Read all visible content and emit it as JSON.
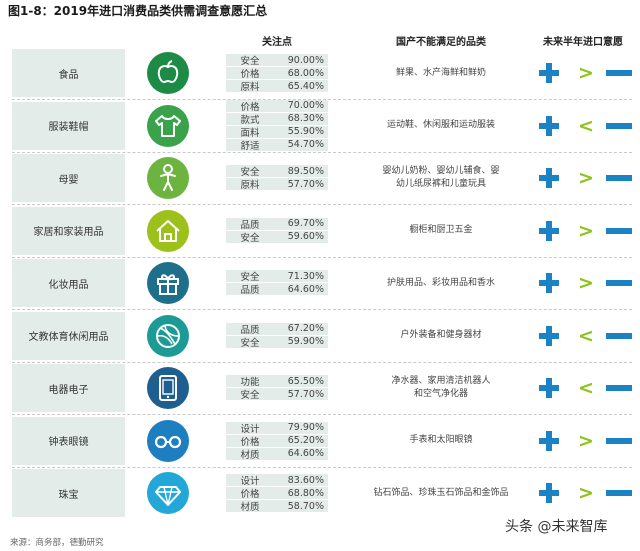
{
  "title": "图1-8：2019年进口消费品类供需调查意愿汇总",
  "headers": {
    "focus": "关注点",
    "unmet": "国产不能满足的品类",
    "intent": "未来半年进口意愿"
  },
  "colors": {
    "accent_blue": "#1b82c4",
    "accent_green": "#8dc21f",
    "category_bg": "#e4ece9"
  },
  "rows": [
    {
      "category": "食品",
      "icon": "apple-icon",
      "icon_color": "#1d8a45",
      "attrs": [
        {
          "k": "安全",
          "v": "90.00%"
        },
        {
          "k": "价格",
          "v": "68.00%"
        },
        {
          "k": "原料",
          "v": "65.40%"
        }
      ],
      "unmet": [
        "鲜果、水产海鲜和鲜奶"
      ],
      "compare": ">"
    },
    {
      "category": "服装鞋帽",
      "icon": "tshirt-icon",
      "icon_color": "#3aa24a",
      "attrs": [
        {
          "k": "价格",
          "v": "70.00%"
        },
        {
          "k": "款式",
          "v": "68.30%"
        },
        {
          "k": "面料",
          "v": "55.90%"
        },
        {
          "k": "舒适",
          "v": "54.70%"
        }
      ],
      "unmet": [
        "运动鞋、休闲服和运动服装"
      ],
      "compare": "<"
    },
    {
      "category": "母婴",
      "icon": "baby-icon",
      "icon_color": "#6cb43f",
      "attrs": [
        {
          "k": "安全",
          "v": "89.50%"
        },
        {
          "k": "原料",
          "v": "57.70%"
        }
      ],
      "unmet": [
        "婴幼儿奶粉、婴幼儿辅食、婴",
        "幼儿纸尿裤和儿童玩具"
      ],
      "compare": ">"
    },
    {
      "category": "家居和家装用品",
      "icon": "house-icon",
      "icon_color": "#9cc11b",
      "attrs": [
        {
          "k": "品质",
          "v": "69.70%"
        },
        {
          "k": "安全",
          "v": "59.60%"
        }
      ],
      "unmet": [
        "橱柜和厨卫五金"
      ],
      "compare": ">"
    },
    {
      "category": "化妆用品",
      "icon": "gift-icon",
      "icon_color": "#1e6f8a",
      "attrs": [
        {
          "k": "安全",
          "v": "71.30%"
        },
        {
          "k": "品质",
          "v": "64.60%"
        }
      ],
      "unmet": [
        "护肤用品、彩妆用品和香水"
      ],
      "compare": ">"
    },
    {
      "category": "文教体育休闲用品",
      "icon": "ball-icon",
      "icon_color": "#1b9a96",
      "attrs": [
        {
          "k": "品质",
          "v": "67.20%"
        },
        {
          "k": "安全",
          "v": "59.90%"
        }
      ],
      "unmet": [
        "户外装备和健身器材"
      ],
      "compare": "<"
    },
    {
      "category": "电器电子",
      "icon": "tablet-icon",
      "icon_color": "#1f5f8f",
      "attrs": [
        {
          "k": "功能",
          "v": "65.50%"
        },
        {
          "k": "安全",
          "v": "57.70%"
        }
      ],
      "unmet": [
        "净水器、家用清洁机器人",
        "和空气净化器"
      ],
      "compare": "<"
    },
    {
      "category": "钟表眼镜",
      "icon": "glasses-icon",
      "icon_color": "#1d7fbf",
      "attrs": [
        {
          "k": "设计",
          "v": "79.90%"
        },
        {
          "k": "价格",
          "v": "65.20%"
        },
        {
          "k": "材质",
          "v": "64.60%"
        }
      ],
      "unmet": [
        "手表和太阳眼镜"
      ],
      "compare": ">"
    },
    {
      "category": "珠宝",
      "icon": "diamond-icon",
      "icon_color": "#22a7d8",
      "attrs": [
        {
          "k": "设计",
          "v": "83.60%"
        },
        {
          "k": "价格",
          "v": "68.80%"
        },
        {
          "k": "材质",
          "v": "58.70%"
        }
      ],
      "unmet": [
        "钻石饰品、珍珠玉石饰品和金饰品"
      ],
      "compare": ">"
    }
  ],
  "source": "来源：商务部，德勤研究",
  "watermark": "头条 @未来智库"
}
